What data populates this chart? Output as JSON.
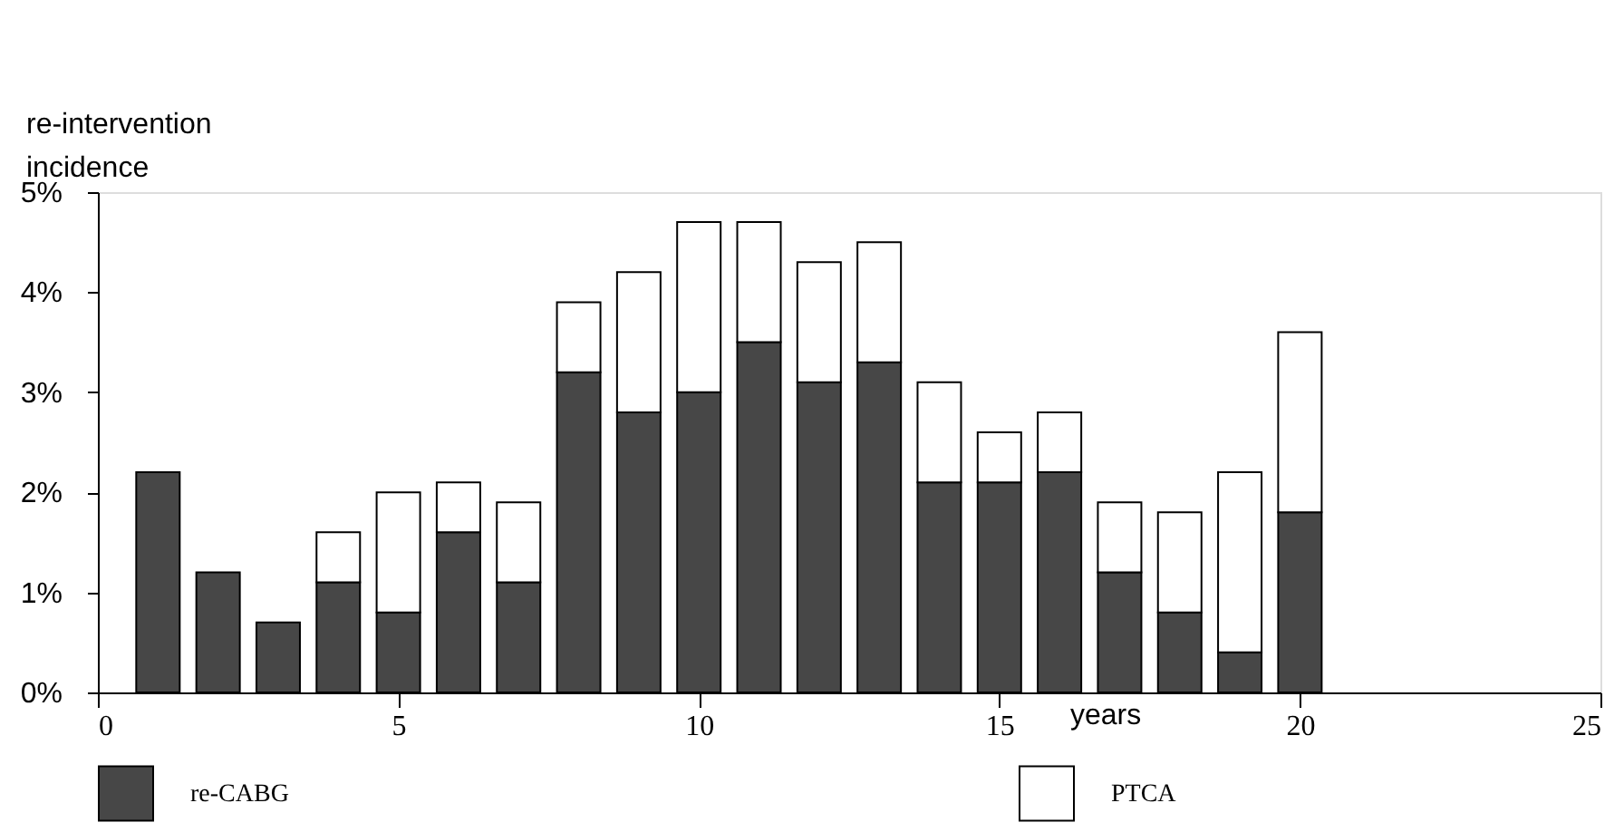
{
  "chart_data": {
    "type": "bar",
    "stacked": true,
    "xlabel": "years",
    "ylabel": "re-intervention incidence",
    "x": [
      1,
      2,
      3,
      4,
      5,
      6,
      7,
      8,
      9,
      10,
      11,
      12,
      13,
      14,
      15,
      16,
      17,
      18,
      19,
      20
    ],
    "series": [
      {
        "name": "re-CABG",
        "color": "#474747",
        "values": [
          2.2,
          1.2,
          0.7,
          1.1,
          0.8,
          1.6,
          1.1,
          3.2,
          2.8,
          3.0,
          3.5,
          3.1,
          3.3,
          2.1,
          2.1,
          2.2,
          1.2,
          0.8,
          0.4,
          1.8
        ]
      },
      {
        "name": "PTCA",
        "color": "#ffffff",
        "values": [
          0,
          0,
          0,
          0.5,
          1.2,
          0.5,
          0.8,
          0.7,
          1.4,
          1.7,
          1.2,
          1.2,
          1.2,
          1.0,
          0.5,
          0.6,
          0.7,
          1.0,
          1.8,
          1.8
        ]
      }
    ],
    "xlim": [
      0,
      25
    ],
    "xticks": [
      0,
      5,
      10,
      15,
      20,
      25
    ],
    "ylim": [
      0,
      5
    ],
    "yticks": [
      {
        "value": 0,
        "label": "0%"
      },
      {
        "value": 1,
        "label": "1%"
      },
      {
        "value": 2,
        "label": "2%"
      },
      {
        "value": 3,
        "label": "3%"
      },
      {
        "value": 4,
        "label": "4%"
      },
      {
        "value": 5,
        "label": "5%"
      }
    ],
    "grid": false,
    "legend": "bottom"
  }
}
